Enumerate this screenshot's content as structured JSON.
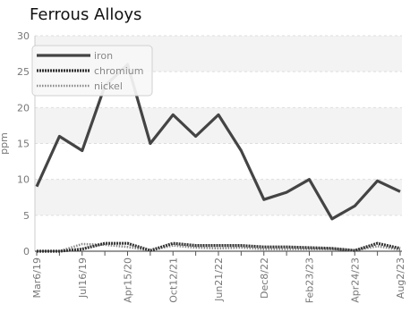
{
  "chart_data": {
    "type": "line",
    "title": "Ferrous Alloys",
    "ylabel": "ppm",
    "xlabel": "",
    "ylim": [
      0,
      30
    ],
    "yticks": [
      0,
      5,
      10,
      15,
      20,
      25,
      30
    ],
    "x": [
      "Mar6/19",
      "",
      "Jul16/19",
      "",
      "Apr15/20",
      "",
      "Oct12/21",
      "",
      "Jun21/22",
      "",
      "Dec8/22",
      "",
      "Feb23/23",
      "",
      "Apr24/23",
      "",
      "Aug2/23"
    ],
    "xtick_labels": [
      "Mar6/19",
      "Jul16/19",
      "Apr15/20",
      "Oct12/21",
      "Jun21/22",
      "Dec8/22",
      "Feb23/23",
      "Apr24/23",
      "Aug2/23"
    ],
    "grid": "horizontal bands",
    "legend_position": "top-left",
    "series": [
      {
        "name": "iron",
        "color": "#444444",
        "style": "solid",
        "values": [
          9,
          16,
          14,
          23,
          26,
          15,
          19,
          16,
          19,
          14,
          7.2,
          8.2,
          10,
          4.5,
          6.3,
          9.8,
          8.3
        ]
      },
      {
        "name": "chromium",
        "color": "#333333",
        "style": "dashed",
        "values": [
          0,
          0,
          0.3,
          1.1,
          1.1,
          0.1,
          1.1,
          0.8,
          0.8,
          0.8,
          0.6,
          0.6,
          0.5,
          0.4,
          0.1,
          1.1,
          0.4
        ]
      },
      {
        "name": "nickel",
        "color": "#8a8a8a",
        "style": "dotted",
        "values": [
          0,
          0,
          1,
          0.9,
          0.6,
          0.1,
          0.8,
          0.5,
          0.4,
          0.5,
          0.3,
          0.3,
          0.3,
          0.3,
          0.1,
          0.7,
          0.2
        ]
      }
    ]
  }
}
